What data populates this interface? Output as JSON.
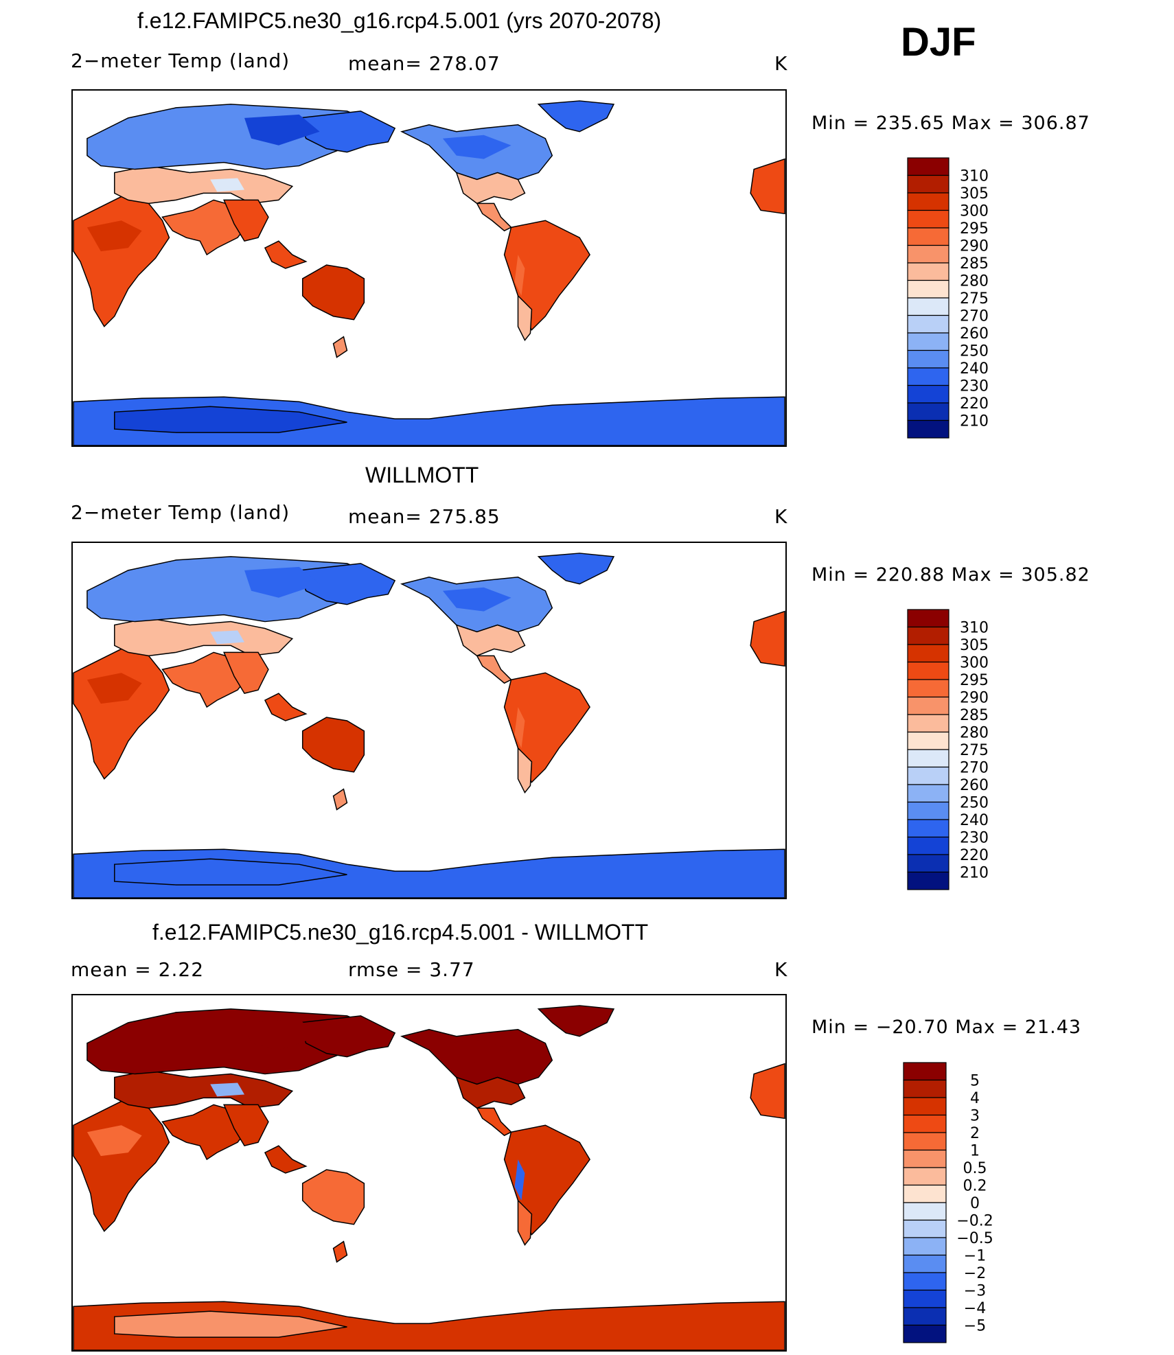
{
  "season": "DJF",
  "chart_data": [
    {
      "type": "heatmap",
      "title": "f.e12.FAMIPC5.ne30_g16.rcp4.5.001 (yrs 2070-2078)",
      "variable": "2−meter Temp (land)",
      "stat_text": "mean=  278.07",
      "units": "K",
      "minmax_text": "Min  =  235.65  Max  =  306.87",
      "min": 235.65,
      "max": 306.87,
      "colorbar": {
        "levels": [
          "310",
          "305",
          "300",
          "295",
          "290",
          "285",
          "280",
          "275",
          "270",
          "260",
          "250",
          "240",
          "230",
          "220",
          "210"
        ],
        "colors": [
          "#8b0000",
          "#b21e00",
          "#d63300",
          "#ee4a14",
          "#f66a36",
          "#f8936a",
          "#fbbb9c",
          "#fde3d0",
          "#dce8f8",
          "#b9d0f7",
          "#8cb2f5",
          "#5a8df2",
          "#2e65ef",
          "#1443d6",
          "#0b2fb2",
          "#02127f"
        ]
      }
    },
    {
      "type": "heatmap",
      "title": "WILLMOTT",
      "variable": "2−meter Temp (land)",
      "stat_text": "mean=  275.85",
      "units": "K",
      "minmax_text": "Min  =  220.88  Max  =  305.82",
      "min": 220.88,
      "max": 305.82,
      "colorbar": {
        "levels": [
          "310",
          "305",
          "300",
          "295",
          "290",
          "285",
          "280",
          "275",
          "270",
          "260",
          "250",
          "240",
          "230",
          "220",
          "210"
        ],
        "colors": [
          "#8b0000",
          "#b21e00",
          "#d63300",
          "#ee4a14",
          "#f66a36",
          "#f8936a",
          "#fbbb9c",
          "#fde3d0",
          "#dce8f8",
          "#b9d0f7",
          "#8cb2f5",
          "#5a8df2",
          "#2e65ef",
          "#1443d6",
          "#0b2fb2",
          "#02127f"
        ]
      }
    },
    {
      "type": "heatmap",
      "title": "f.e12.FAMIPC5.ne30_g16.rcp4.5.001 - WILLMOTT",
      "stat_text": "mean  =      2.22",
      "stat2_text": "rmse  =      3.77",
      "units": "K",
      "minmax_text": "Min  =  −20.70  Max  =    21.43",
      "min": -20.7,
      "max": 21.43,
      "mean": 2.22,
      "rmse": 3.77,
      "colorbar": {
        "levels": [
          "5",
          "4",
          "3",
          "2",
          "1",
          "0.5",
          "0.2",
          "0",
          "−0.2",
          "−0.5",
          "−1",
          "−2",
          "−3",
          "−4",
          "−5"
        ],
        "colors": [
          "#8b0000",
          "#b21e00",
          "#d63300",
          "#ee4a14",
          "#f66a36",
          "#f8936a",
          "#fbbb9c",
          "#fde3d0",
          "#dce8f8",
          "#b9d0f7",
          "#8cb2f5",
          "#5a8df2",
          "#2e65ef",
          "#1443d6",
          "#0b2fb2",
          "#02127f"
        ]
      }
    }
  ]
}
